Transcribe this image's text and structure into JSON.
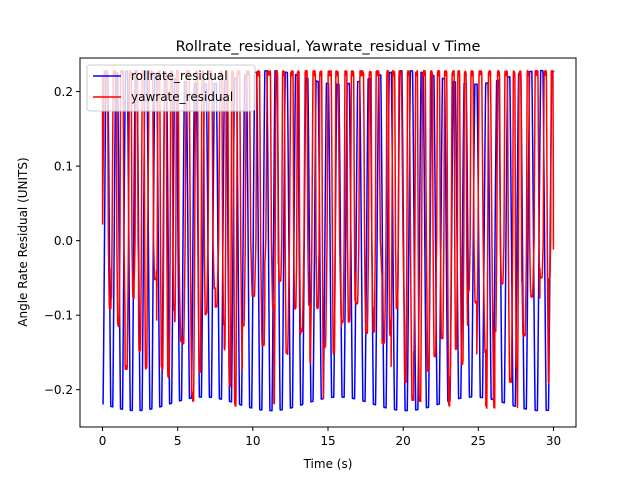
{
  "chart_data": {
    "type": "line",
    "title": "Rollrate_residual, Yawrate_residual v Time",
    "xlabel": "Time (s)",
    "ylabel": "Angle Rate Residual (UNITS)",
    "xlim": [
      -1.5,
      31.5
    ],
    "ylim": [
      -0.25,
      0.245
    ],
    "xticks": [
      0,
      5,
      10,
      15,
      20,
      25,
      30
    ],
    "xtick_labels": [
      "0",
      "5",
      "10",
      "15",
      "20",
      "25",
      "30"
    ],
    "yticks": [
      -0.2,
      -0.1,
      0.0,
      0.1,
      0.2
    ],
    "ytick_labels": [
      "−0.2",
      "−0.1",
      "0.0",
      "0.1",
      "0.2"
    ],
    "grid": false,
    "legend_position": "top-left",
    "series": [
      {
        "name": "rollrate_residual",
        "color": "#0000ff",
        "amplitude": 0.228,
        "cycles_per_second_start": 1.55,
        "cycles_per_second_end": 1.35,
        "start_value": -0.217,
        "end_value": 0.228
      },
      {
        "name": "yawrate_residual",
        "color": "#ff0000",
        "amplitude": 0.226,
        "upper_band": 0.228,
        "lower_band": -0.228,
        "start_value": 0.22,
        "end_value": -0.012
      }
    ]
  }
}
